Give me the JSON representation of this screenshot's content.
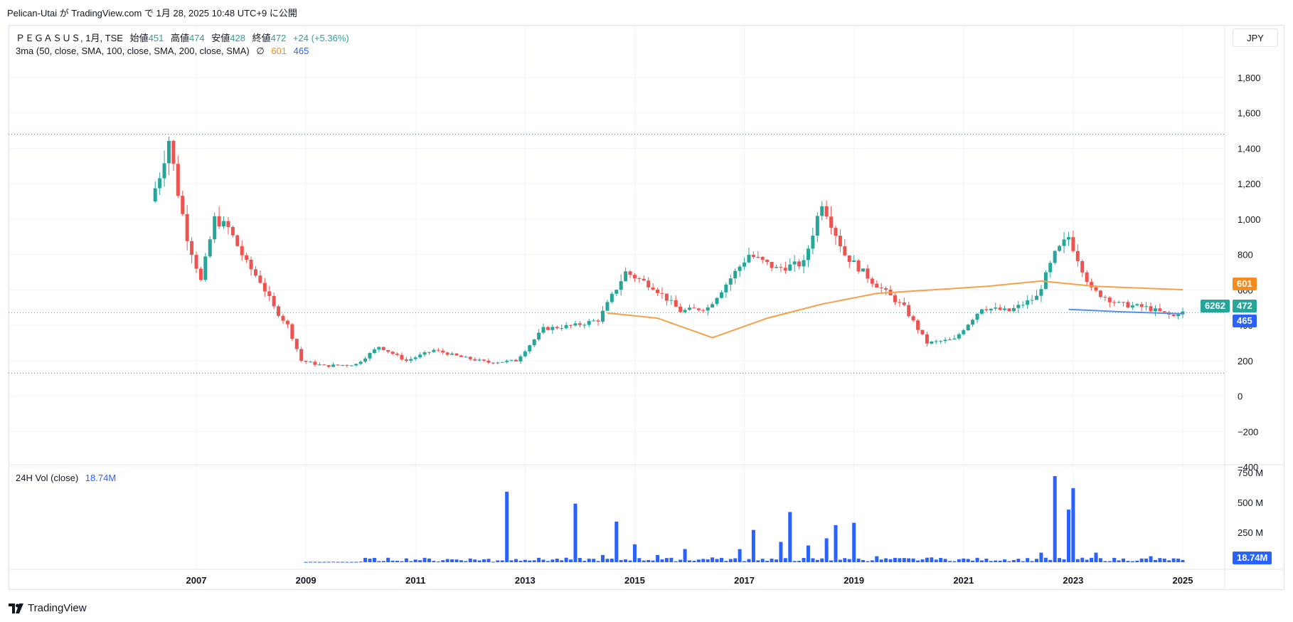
{
  "header": {
    "published_line": "Pelican-Utai が TradingView.com で 1月 28, 2025 10:48 UTC+9 に公開"
  },
  "legend": {
    "symbol": "ＰＥＧＡＳＵＳ, 1月, TSE",
    "open_label": "始値",
    "open": "451",
    "high_label": "高値",
    "high": "474",
    "low_label": "安値",
    "low": "428",
    "close_label": "終値",
    "close": "472",
    "change": "+24 (+5.36%)",
    "ma_label": "3ma (50, close, SMA, 100, close, SMA, 200, close, SMA)",
    "ma_empty": "∅",
    "ma100": "601",
    "ma200": "465",
    "vol_label": "24H Vol (close)",
    "vol_value": "18.74M"
  },
  "currency": "JPY",
  "price_tags": {
    "ma100": "601",
    "countdown": "6262",
    "close": "472",
    "ma200": "465",
    "vol": "18.74M"
  },
  "footer": {
    "brand": "TradingView"
  },
  "colors": {
    "up": "#26a69a",
    "down": "#ef5350",
    "ma100": "#f6a14a",
    "ma200": "#5b8def",
    "volume": "#2962ff"
  },
  "chart_data": {
    "type": "candlestick",
    "price_axis": {
      "min": -400,
      "max": 1800,
      "ticks": [
        "1,800",
        "1,600",
        "1,400",
        "1,200",
        "1,000",
        "800",
        "600",
        "400",
        "200",
        "0",
        "−200",
        "−400"
      ]
    },
    "volume_axis": {
      "ticks": [
        "750 M",
        "500 M",
        "250 M"
      ]
    },
    "x_axis": {
      "labels": [
        "2007",
        "2009",
        "2011",
        "2013",
        "2015",
        "2017",
        "2019",
        "2021",
        "2023",
        "2025"
      ]
    },
    "reference_lines": [
      1480,
      130
    ],
    "price_series": [
      [
        "2006-04",
        1100
      ],
      [
        "2006-06",
        1250
      ],
      [
        "2006-08",
        1450
      ],
      [
        "2006-10",
        1150
      ],
      [
        "2006-12",
        900
      ],
      [
        "2007-03",
        650
      ],
      [
        "2007-06",
        1000
      ],
      [
        "2007-09",
        950
      ],
      [
        "2008-01",
        750
      ],
      [
        "2008-04",
        650
      ],
      [
        "2008-07",
        500
      ],
      [
        "2008-10",
        400
      ],
      [
        "2009-01",
        200
      ],
      [
        "2009-06",
        170
      ],
      [
        "2010-01",
        180
      ],
      [
        "2010-06",
        280
      ],
      [
        "2010-12",
        200
      ],
      [
        "2011-06",
        260
      ],
      [
        "2011-12",
        220
      ],
      [
        "2012-06",
        190
      ],
      [
        "2012-12",
        200
      ],
      [
        "2013-06",
        380
      ],
      [
        "2014-01",
        400
      ],
      [
        "2014-06",
        430
      ],
      [
        "2014-12",
        700
      ],
      [
        "2015-06",
        620
      ],
      [
        "2015-12",
        480
      ],
      [
        "2016-06",
        500
      ],
      [
        "2016-12",
        700
      ],
      [
        "2017-03",
        800
      ],
      [
        "2017-09",
        720
      ],
      [
        "2018-03",
        750
      ],
      [
        "2018-07",
        1100
      ],
      [
        "2018-12",
        800
      ],
      [
        "2019-06",
        650
      ],
      [
        "2020-01",
        500
      ],
      [
        "2020-06",
        300
      ],
      [
        "2020-12",
        320
      ],
      [
        "2021-06",
        500
      ],
      [
        "2021-12",
        480
      ],
      [
        "2022-06",
        560
      ],
      [
        "2022-10",
        800
      ],
      [
        "2023-01",
        900
      ],
      [
        "2023-06",
        600
      ],
      [
        "2023-12",
        520
      ],
      [
        "2024-06",
        500
      ],
      [
        "2024-12",
        450
      ],
      [
        "2025-01",
        472
      ]
    ],
    "ma100_series": [
      [
        "2014-07",
        470
      ],
      [
        "2015-06",
        440
      ],
      [
        "2016-06",
        330
      ],
      [
        "2017-06",
        440
      ],
      [
        "2018-06",
        520
      ],
      [
        "2019-06",
        580
      ],
      [
        "2020-06",
        600
      ],
      [
        "2021-06",
        620
      ],
      [
        "2022-06",
        650
      ],
      [
        "2023-06",
        620
      ],
      [
        "2025-01",
        601
      ]
    ],
    "ma200_series": [
      [
        "2022-12",
        490
      ],
      [
        "2023-12",
        476
      ],
      [
        "2025-01",
        465
      ]
    ],
    "volume_series_M": [
      [
        "2009-01",
        2
      ],
      [
        "2010-01",
        5
      ],
      [
        "2010-06",
        10
      ],
      [
        "2011-06",
        6
      ],
      [
        "2012-06",
        4
      ],
      [
        "2012-09",
        590
      ],
      [
        "2013-01",
        20
      ],
      [
        "2013-06",
        10
      ],
      [
        "2013-12",
        490
      ],
      [
        "2014-06",
        60
      ],
      [
        "2014-09",
        340
      ],
      [
        "2015-01",
        150
      ],
      [
        "2015-06",
        60
      ],
      [
        "2015-12",
        110
      ],
      [
        "2016-06",
        40
      ],
      [
        "2016-12",
        110
      ],
      [
        "2017-03",
        270
      ],
      [
        "2017-09",
        170
      ],
      [
        "2017-11",
        420
      ],
      [
        "2018-03",
        140
      ],
      [
        "2018-07",
        200
      ],
      [
        "2018-09",
        310
      ],
      [
        "2019-01",
        330
      ],
      [
        "2019-06",
        50
      ],
      [
        "2020-06",
        40
      ],
      [
        "2021-06",
        30
      ],
      [
        "2022-06",
        80
      ],
      [
        "2022-09",
        720
      ],
      [
        "2022-12",
        440
      ],
      [
        "2023-01",
        620
      ],
      [
        "2023-06",
        80
      ],
      [
        "2024-06",
        50
      ],
      [
        "2025-01",
        18.74
      ]
    ]
  }
}
